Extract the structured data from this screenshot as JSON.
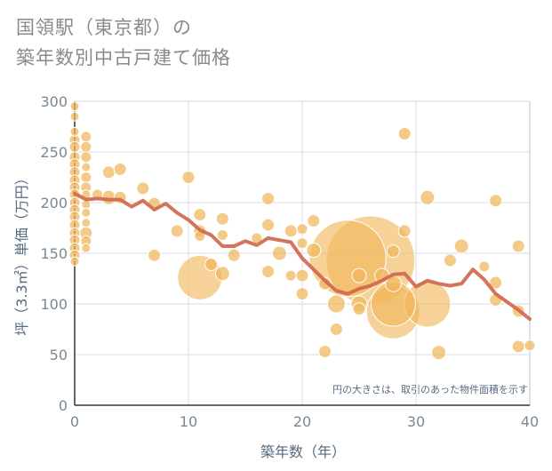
{
  "title": {
    "line1": "国領駅（東京都）の",
    "line2": "築年数別中古戸建て価格"
  },
  "chart_data": {
    "type": "scatter",
    "title": "国領駅（東京都）の築年数別中古戸建て価格",
    "xlabel": "築年数（年）",
    "ylabel": "坪（3.3㎡）単価（万円）",
    "xlim": [
      0,
      40
    ],
    "ylim": [
      0,
      300
    ],
    "xticks": [
      0,
      10,
      20,
      30,
      40
    ],
    "yticks": [
      0,
      50,
      100,
      150,
      200,
      250,
      300
    ],
    "grid": true,
    "note": "円の大きさは、取引のあった物件面積を示す",
    "colors": {
      "bubble": "#f0b65a",
      "line": "#d0684e",
      "grid": "#d4dde6",
      "plot_border": "#b4c4d4"
    },
    "bubbles": [
      {
        "x": 0,
        "y": 295,
        "s": 5
      },
      {
        "x": 0,
        "y": 285,
        "s": 5
      },
      {
        "x": 0,
        "y": 270,
        "s": 5
      },
      {
        "x": 0,
        "y": 262,
        "s": 6
      },
      {
        "x": 0,
        "y": 255,
        "s": 6
      },
      {
        "x": 0,
        "y": 245,
        "s": 6
      },
      {
        "x": 0,
        "y": 238,
        "s": 6
      },
      {
        "x": 0,
        "y": 230,
        "s": 6
      },
      {
        "x": 0,
        "y": 222,
        "s": 6
      },
      {
        "x": 0,
        "y": 215,
        "s": 6
      },
      {
        "x": 0,
        "y": 208,
        "s": 6
      },
      {
        "x": 0,
        "y": 200,
        "s": 6
      },
      {
        "x": 0,
        "y": 193,
        "s": 6
      },
      {
        "x": 0,
        "y": 186,
        "s": 6
      },
      {
        "x": 0,
        "y": 178,
        "s": 6
      },
      {
        "x": 0,
        "y": 170,
        "s": 6
      },
      {
        "x": 0,
        "y": 163,
        "s": 6
      },
      {
        "x": 0,
        "y": 155,
        "s": 6
      },
      {
        "x": 0,
        "y": 148,
        "s": 6
      },
      {
        "x": 0,
        "y": 142,
        "s": 5
      },
      {
        "x": 1,
        "y": 265,
        "s": 6
      },
      {
        "x": 1,
        "y": 255,
        "s": 6
      },
      {
        "x": 1,
        "y": 245,
        "s": 6
      },
      {
        "x": 1,
        "y": 235,
        "s": 5
      },
      {
        "x": 1,
        "y": 225,
        "s": 6
      },
      {
        "x": 1,
        "y": 215,
        "s": 6
      },
      {
        "x": 1,
        "y": 208,
        "s": 5
      },
      {
        "x": 1,
        "y": 198,
        "s": 5
      },
      {
        "x": 1,
        "y": 190,
        "s": 5
      },
      {
        "x": 1,
        "y": 180,
        "s": 5
      },
      {
        "x": 1,
        "y": 170,
        "s": 7
      },
      {
        "x": 1,
        "y": 162,
        "s": 6
      },
      {
        "x": 1,
        "y": 155,
        "s": 5
      },
      {
        "x": 2,
        "y": 208,
        "s": 6
      },
      {
        "x": 3,
        "y": 230,
        "s": 7
      },
      {
        "x": 3,
        "y": 205,
        "s": 8
      },
      {
        "x": 4,
        "y": 233,
        "s": 7
      },
      {
        "x": 4,
        "y": 205,
        "s": 7
      },
      {
        "x": 6,
        "y": 214,
        "s": 7
      },
      {
        "x": 7,
        "y": 199,
        "s": 7
      },
      {
        "x": 7,
        "y": 148,
        "s": 7
      },
      {
        "x": 9,
        "y": 172,
        "s": 7
      },
      {
        "x": 10,
        "y": 225,
        "s": 7
      },
      {
        "x": 11,
        "y": 188,
        "s": 7
      },
      {
        "x": 11,
        "y": 172,
        "s": 7
      },
      {
        "x": 11,
        "y": 167,
        "s": 6
      },
      {
        "x": 11,
        "y": 126,
        "s": 25
      },
      {
        "x": 12,
        "y": 139,
        "s": 7
      },
      {
        "x": 13,
        "y": 184,
        "s": 7
      },
      {
        "x": 13,
        "y": 168,
        "s": 6
      },
      {
        "x": 13,
        "y": 130,
        "s": 8
      },
      {
        "x": 14,
        "y": 148,
        "s": 7
      },
      {
        "x": 16,
        "y": 165,
        "s": 6
      },
      {
        "x": 17,
        "y": 204,
        "s": 7
      },
      {
        "x": 17,
        "y": 178,
        "s": 7
      },
      {
        "x": 17,
        "y": 132,
        "s": 7
      },
      {
        "x": 18,
        "y": 150,
        "s": 8
      },
      {
        "x": 19,
        "y": 172,
        "s": 7
      },
      {
        "x": 19,
        "y": 128,
        "s": 6
      },
      {
        "x": 20,
        "y": 174,
        "s": 6
      },
      {
        "x": 20,
        "y": 160,
        "s": 6
      },
      {
        "x": 20,
        "y": 128,
        "s": 7
      },
      {
        "x": 20,
        "y": 110,
        "s": 7
      },
      {
        "x": 21,
        "y": 182,
        "s": 7
      },
      {
        "x": 21,
        "y": 153,
        "s": 8
      },
      {
        "x": 22,
        "y": 120,
        "s": 7
      },
      {
        "x": 22,
        "y": 53,
        "s": 7
      },
      {
        "x": 23,
        "y": 100,
        "s": 10
      },
      {
        "x": 23,
        "y": 75,
        "s": 7
      },
      {
        "x": 24,
        "y": 145,
        "s": 43
      },
      {
        "x": 25,
        "y": 128,
        "s": 8
      },
      {
        "x": 25,
        "y": 100,
        "s": 9
      },
      {
        "x": 25,
        "y": 95,
        "s": 7
      },
      {
        "x": 26,
        "y": 143,
        "s": 50
      },
      {
        "x": 27,
        "y": 128,
        "s": 8
      },
      {
        "x": 28,
        "y": 152,
        "s": 7
      },
      {
        "x": 28,
        "y": 120,
        "s": 9
      },
      {
        "x": 28,
        "y": 100,
        "s": 25
      },
      {
        "x": 28,
        "y": 92,
        "s": 30
      },
      {
        "x": 29,
        "y": 268,
        "s": 7
      },
      {
        "x": 29,
        "y": 172,
        "s": 7
      },
      {
        "x": 31,
        "y": 205,
        "s": 8
      },
      {
        "x": 31,
        "y": 100,
        "s": 26
      },
      {
        "x": 32,
        "y": 52,
        "s": 8
      },
      {
        "x": 33,
        "y": 143,
        "s": 7
      },
      {
        "x": 34,
        "y": 157,
        "s": 8
      },
      {
        "x": 36,
        "y": 137,
        "s": 6
      },
      {
        "x": 37,
        "y": 202,
        "s": 7
      },
      {
        "x": 37,
        "y": 121,
        "s": 7
      },
      {
        "x": 37,
        "y": 104,
        "s": 7
      },
      {
        "x": 39,
        "y": 157,
        "s": 7
      },
      {
        "x": 39,
        "y": 93,
        "s": 7
      },
      {
        "x": 39,
        "y": 58,
        "s": 7
      },
      {
        "x": 40,
        "y": 59,
        "s": 6
      }
    ],
    "line": {
      "x": [
        0,
        1,
        2,
        3,
        4,
        5,
        6,
        7,
        8,
        9,
        10,
        11,
        12,
        13,
        14,
        15,
        16,
        17,
        18,
        19,
        20,
        21,
        22,
        23,
        24,
        25,
        26,
        27,
        28,
        29,
        30,
        31,
        32,
        33,
        34,
        35,
        36,
        37,
        38,
        39,
        40
      ],
      "y": [
        209,
        203,
        204,
        203,
        203,
        196,
        202,
        193,
        199,
        190,
        183,
        173,
        168,
        157,
        157,
        162,
        158,
        165,
        163,
        161,
        145,
        134,
        123,
        113,
        110,
        115,
        118,
        123,
        129,
        130,
        117,
        123,
        120,
        118,
        120,
        134,
        124,
        110,
        102,
        94,
        85
      ]
    }
  }
}
